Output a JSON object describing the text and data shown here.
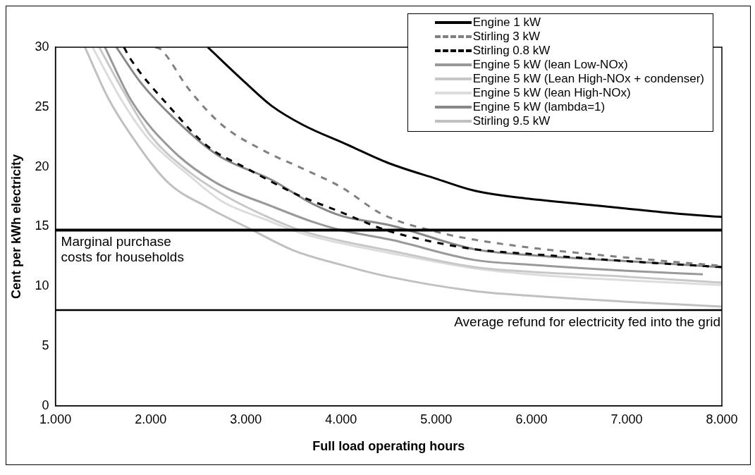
{
  "chart_data": {
    "type": "line",
    "xlabel": "Full load operating hours",
    "ylabel": "Cent per kWh electricity",
    "xlim": [
      1,
      8
    ],
    "ylim": [
      0,
      30
    ],
    "xticks": [
      {
        "value": 1,
        "label": "1.000"
      },
      {
        "value": 2,
        "label": "2.000"
      },
      {
        "value": 3,
        "label": "3.000"
      },
      {
        "value": 4,
        "label": "4.000"
      },
      {
        "value": 5,
        "label": "5.000"
      },
      {
        "value": 6,
        "label": "6.000"
      },
      {
        "value": 7,
        "label": "7.000"
      },
      {
        "value": 8,
        "label": "8.000"
      }
    ],
    "yticks": [
      0,
      5,
      10,
      15,
      20,
      25,
      30
    ],
    "grid": false,
    "legend": "top right",
    "marker": "none",
    "series": [
      {
        "name": "Engine 1 kW",
        "color": "#000000",
        "line_style": "solid",
        "x": [
          2.6,
          3.0,
          3.27,
          3.6,
          4.05,
          4.5,
          5.0,
          5.4,
          6.0,
          6.5,
          7.0,
          7.5,
          8.0
        ],
        "values": [
          30,
          27.0,
          25.1,
          23.5,
          21.9,
          20.3,
          19.0,
          18.0,
          17.3,
          16.9,
          16.5,
          16.1,
          15.8
        ]
      },
      {
        "name": "Stirling 3 kW",
        "color": "#808080",
        "line_style": "dashed",
        "x": [
          2.05,
          2.11,
          2.4,
          2.75,
          3.2,
          3.61,
          4.0,
          4.44,
          5.03,
          5.4,
          6.02,
          7.0,
          8.0
        ],
        "values": [
          30,
          29.8,
          26.5,
          23.5,
          21.3,
          19.8,
          18.3,
          16.0,
          14.5,
          13.9,
          13.2,
          12.4,
          11.7
        ]
      },
      {
        "name": "Stirling 0.8 kW",
        "color": "#000000",
        "line_style": "dashed",
        "x": [
          1.72,
          1.79,
          2.2,
          2.6,
          3.0,
          3.53,
          4.0,
          4.47,
          4.8,
          5.4,
          6.0,
          7.0,
          8.0
        ],
        "values": [
          30,
          29.0,
          25.0,
          21.7,
          19.9,
          17.7,
          16.2,
          14.7,
          14.0,
          13.1,
          12.7,
          12.1,
          11.6
        ]
      },
      {
        "name": "Engine 5 kW (lean Low-NOx)",
        "color": "#999999",
        "line_style": "solid",
        "x": [
          1.52,
          1.8,
          2.24,
          2.7,
          3.27,
          3.7,
          4.0,
          4.52,
          5.4,
          6.0,
          7.0,
          7.8
        ],
        "values": [
          30,
          25.5,
          21.3,
          18.6,
          16.7,
          15.4,
          14.7,
          13.9,
          12.2,
          11.8,
          11.3,
          11.0
        ]
      },
      {
        "name": "Engine 5 kW (Lean High-NOx + condenser)",
        "color": "#c8c8c8",
        "line_style": "solid",
        "x": [
          1.46,
          1.7,
          2.0,
          2.4,
          2.8,
          3.2,
          3.6,
          4.0,
          4.5,
          5.4,
          6.0,
          7.0,
          8.0
        ],
        "values": [
          30,
          26.5,
          22.6,
          19.6,
          17.5,
          15.9,
          14.6,
          13.8,
          13.0,
          11.6,
          11.2,
          10.8,
          10.3
        ]
      },
      {
        "name": "Engine 5 kW (lean High-NOx)",
        "color": "#dcdcdc",
        "line_style": "solid",
        "x": [
          1.39,
          1.7,
          1.98,
          2.4,
          2.75,
          3.2,
          3.6,
          4.0,
          4.5,
          5.4,
          6.0,
          7.0,
          8.0
        ],
        "values": [
          30,
          25.5,
          22.3,
          19.3,
          17.1,
          15.6,
          14.4,
          13.6,
          12.8,
          11.5,
          11.0,
          10.5,
          10.1
        ]
      },
      {
        "name": "Engine 5 kW (lambda=1)",
        "color": "#888888",
        "line_style": "solid",
        "x": [
          1.64,
          1.9,
          2.24,
          2.7,
          3.27,
          3.7,
          4.0,
          4.52,
          5.4,
          6.0,
          7.0,
          8.0
        ],
        "values": [
          30,
          27.0,
          24.1,
          21.0,
          18.9,
          16.9,
          15.9,
          15.1,
          13.1,
          12.6,
          12.1,
          11.6
        ]
      },
      {
        "name": "Stirling 9.5 kW",
        "color": "#c0c0c0",
        "line_style": "solid",
        "x": [
          1.31,
          1.55,
          1.79,
          2.18,
          2.6,
          3.02,
          3.5,
          4.0,
          4.5,
          5.4,
          6.0,
          7.0,
          8.0
        ],
        "values": [
          30,
          25.8,
          22.7,
          18.7,
          16.6,
          14.9,
          13.0,
          11.8,
          10.8,
          9.6,
          9.2,
          8.7,
          8.3
        ]
      }
    ],
    "ref_lines": [
      {
        "axis": "y",
        "value": 14.7,
        "label": "Marginal purchase\ncosts for households",
        "color": "#000000"
      },
      {
        "axis": "y",
        "value": 8,
        "label": "Average refund for electricity fed into the grid",
        "color": "#000000"
      }
    ]
  }
}
